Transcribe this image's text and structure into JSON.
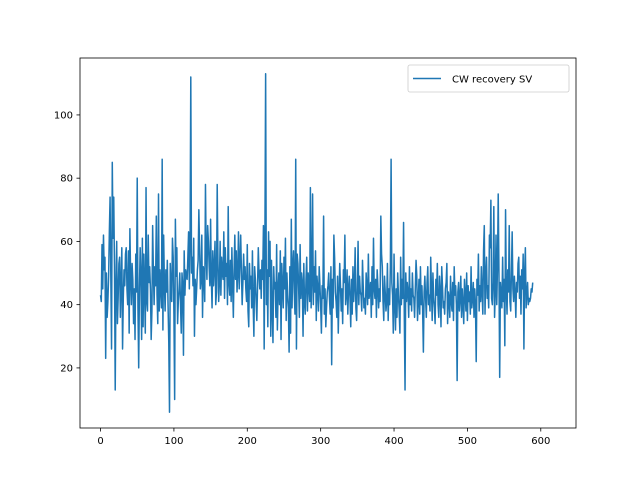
{
  "chart_data": {
    "type": "line",
    "title": "",
    "xlabel": "",
    "ylabel": "",
    "xlim": [
      -28,
      648
    ],
    "ylim": [
      1,
      118
    ],
    "x_ticks": [
      0,
      100,
      200,
      300,
      400,
      500,
      600
    ],
    "y_ticks": [
      20,
      40,
      60,
      80,
      100
    ],
    "grid": false,
    "legend": {
      "position": "top-right"
    },
    "series": [
      {
        "name": "CW recovery SV",
        "color": "#1f77b4",
        "x_start": 0,
        "x_step": 1,
        "values": [
          43,
          41,
          59,
          45,
          62,
          51,
          55,
          23,
          50,
          36,
          41,
          49,
          63,
          74,
          49,
          26,
          85,
          61,
          74,
          52,
          13,
          46,
          60,
          34,
          42,
          53,
          55,
          36,
          47,
          58,
          26,
          42,
          51,
          46,
          56,
          58,
          45,
          40,
          57,
          31,
          64,
          49,
          40,
          53,
          48,
          34,
          45,
          29,
          56,
          44,
          80,
          39,
          20,
          45,
          58,
          49,
          29,
          61,
          33,
          56,
          45,
          31,
          77,
          41,
          38,
          62,
          47,
          52,
          45,
          29,
          38,
          65,
          51,
          40,
          52,
          46,
          68,
          43,
          34,
          75,
          38,
          51,
          45,
          39,
          86,
          32,
          62,
          47,
          38,
          51,
          44,
          54,
          40,
          28,
          6,
          53,
          45,
          41,
          61,
          55,
          37,
          10,
          67,
          49,
          58,
          34,
          41,
          45,
          50,
          40,
          31,
          50,
          46,
          24,
          57,
          43,
          51,
          49,
          48,
          55,
          63,
          45,
          59,
          112,
          50,
          55,
          46,
          61,
          30,
          48,
          40,
          45,
          51,
          54,
          70,
          58,
          45,
          48,
          62,
          36,
          52,
          50,
          41,
          78,
          56,
          48,
          65,
          60,
          52,
          46,
          67,
          48,
          39,
          57,
          46,
          52,
          60,
          40,
          44,
          78,
          54,
          41,
          47,
          60,
          43,
          55,
          50,
          48,
          63,
          42,
          58,
          49,
          53,
          40,
          71,
          47,
          43,
          54,
          41,
          58,
          46,
          36,
          51,
          62,
          48,
          57,
          44,
          50,
          63,
          45,
          53,
          62,
          51,
          40,
          47,
          56,
          48,
          52,
          45,
          41,
          59,
          38,
          33,
          53,
          45,
          49,
          39,
          57,
          40,
          30,
          52,
          48,
          41,
          35,
          46,
          58,
          50,
          45,
          51,
          42,
          54,
          48,
          65,
          26,
          60,
          113,
          40,
          51,
          33,
          63,
          49,
          60,
          30,
          54,
          38,
          28,
          52,
          45,
          47,
          36,
          59,
          32,
          44,
          50,
          40,
          57,
          29,
          53,
          46,
          39,
          55,
          45,
          61,
          35,
          50,
          43,
          39,
          25,
          52,
          31,
          67,
          39,
          52,
          57,
          44,
          37,
          86,
          26,
          56,
          53,
          45,
          36,
          59,
          42,
          50,
          47,
          30,
          53,
          41,
          37,
          48,
          55,
          38,
          50,
          46,
          41,
          77,
          39,
          48,
          75,
          40,
          52,
          44,
          57,
          35,
          49,
          45,
          38,
          52,
          46,
          40,
          31,
          46,
          42,
          68,
          37,
          45,
          33,
          39,
          44,
          46,
          50,
          42,
          37,
          52,
          21,
          48,
          39,
          62,
          55,
          44,
          41,
          36,
          49,
          31,
          43,
          53,
          46,
          38,
          45,
          34,
          51,
          47,
          62,
          40,
          43,
          51,
          37,
          45,
          49,
          42,
          33,
          48,
          37,
          52,
          41,
          46,
          58,
          39,
          35,
          46,
          60,
          40,
          49,
          44,
          43,
          38,
          54,
          46,
          39,
          42,
          37,
          50,
          45,
          40,
          56,
          42,
          44,
          47,
          36,
          52,
          40,
          61,
          45,
          42,
          48,
          36,
          51,
          46,
          39,
          45,
          41,
          68,
          56,
          52,
          41,
          35,
          49,
          44,
          38,
          41,
          53,
          35,
          45,
          40,
          52,
          86,
          47,
          43,
          31,
          56,
          40,
          32,
          45,
          36,
          50,
          43,
          38,
          31,
          55,
          40,
          48,
          42,
          66,
          36,
          13,
          50,
          41,
          47,
          44,
          36,
          52,
          40,
          45,
          38,
          50,
          43,
          42,
          36,
          45,
          54,
          49,
          35,
          41,
          48,
          37,
          52,
          40,
          46,
          38,
          25,
          44,
          49,
          42,
          36,
          47,
          52,
          40,
          43,
          38,
          55,
          45,
          35,
          50,
          42,
          39,
          34,
          48,
          43,
          53,
          40,
          36,
          49,
          44,
          33,
          52,
          46,
          39,
          41,
          37,
          45,
          47,
          53,
          34,
          44,
          42,
          36,
          49,
          41,
          38,
          47,
          35,
          52,
          43,
          46,
          40,
          16,
          44,
          47,
          38,
          42,
          49,
          36,
          45,
          40,
          34,
          48,
          43,
          38,
          50,
          35,
          46,
          41,
          44,
          37,
          52,
          39,
          42,
          47,
          36,
          45,
          40,
          22,
          48,
          43,
          56,
          38,
          46,
          41,
          52,
          44,
          37,
          57,
          65,
          37,
          49,
          55,
          42,
          46,
          39,
          62,
          58,
          73,
          42,
          40,
          47,
          71,
          36,
          44,
          62,
          40,
          52,
          75,
          50,
          17,
          47,
          43,
          39,
          55,
          41,
          48,
          27,
          70,
          45,
          37,
          51,
          44,
          65,
          41,
          38,
          50,
          63,
          45,
          41,
          49,
          44,
          36,
          47,
          44,
          53,
          55,
          42,
          49,
          37,
          51,
          45,
          56,
          26,
          50,
          58,
          39,
          43,
          47,
          40,
          42,
          41,
          42,
          45,
          44,
          47
        ]
      }
    ]
  }
}
